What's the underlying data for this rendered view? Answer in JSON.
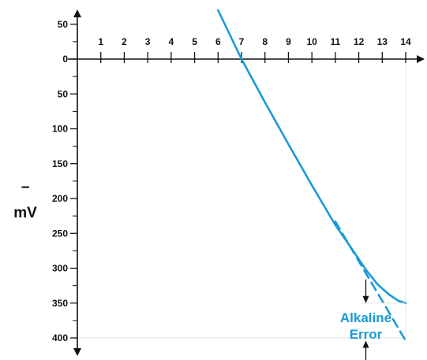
{
  "chart_data": {
    "type": "line",
    "xlabel": "",
    "ylabel": "mV",
    "ylabel_sign": "−",
    "x_ticks": [
      "1",
      "2",
      "3",
      "4",
      "5",
      "6",
      "7",
      "8",
      "9",
      "10",
      "11",
      "12",
      "13",
      "14"
    ],
    "y_ticks": [
      {
        "value": 50,
        "label": "50"
      },
      {
        "value": 0,
        "label": "0"
      },
      {
        "value": -50,
        "label": "50"
      },
      {
        "value": -100,
        "label": "100"
      },
      {
        "value": -150,
        "label": "150"
      },
      {
        "value": -200,
        "label": "200"
      },
      {
        "value": -250,
        "label": "250"
      },
      {
        "value": -300,
        "label": "300"
      },
      {
        "value": -350,
        "label": "350"
      },
      {
        "value": -400,
        "label": "400"
      }
    ],
    "xlim": [
      0,
      14
    ],
    "ylim": [
      -410,
      50
    ],
    "series": [
      {
        "style": "solid",
        "color": "#1a9ad8",
        "x": [
          6.0,
          7.0,
          8.0,
          9.0,
          10.0,
          11.0,
          11.7,
          12.3,
          12.8,
          13.3,
          13.7,
          14.0
        ],
        "y": [
          70,
          0,
          -62,
          -122,
          -181,
          -238,
          -272,
          -302,
          -323,
          -338,
          -347,
          -350
        ]
      },
      {
        "style": "dashed",
        "color": "#1a9ad8",
        "x": [
          11.0,
          14.0
        ],
        "y": [
          -233,
          -404
        ]
      }
    ],
    "annotations": [
      {
        "text_lines": [
          "Alkaline",
          "Error"
        ],
        "color": "#1a9ad8",
        "x": 13.0,
        "y_range": [
          -350,
          -404
        ]
      }
    ]
  }
}
